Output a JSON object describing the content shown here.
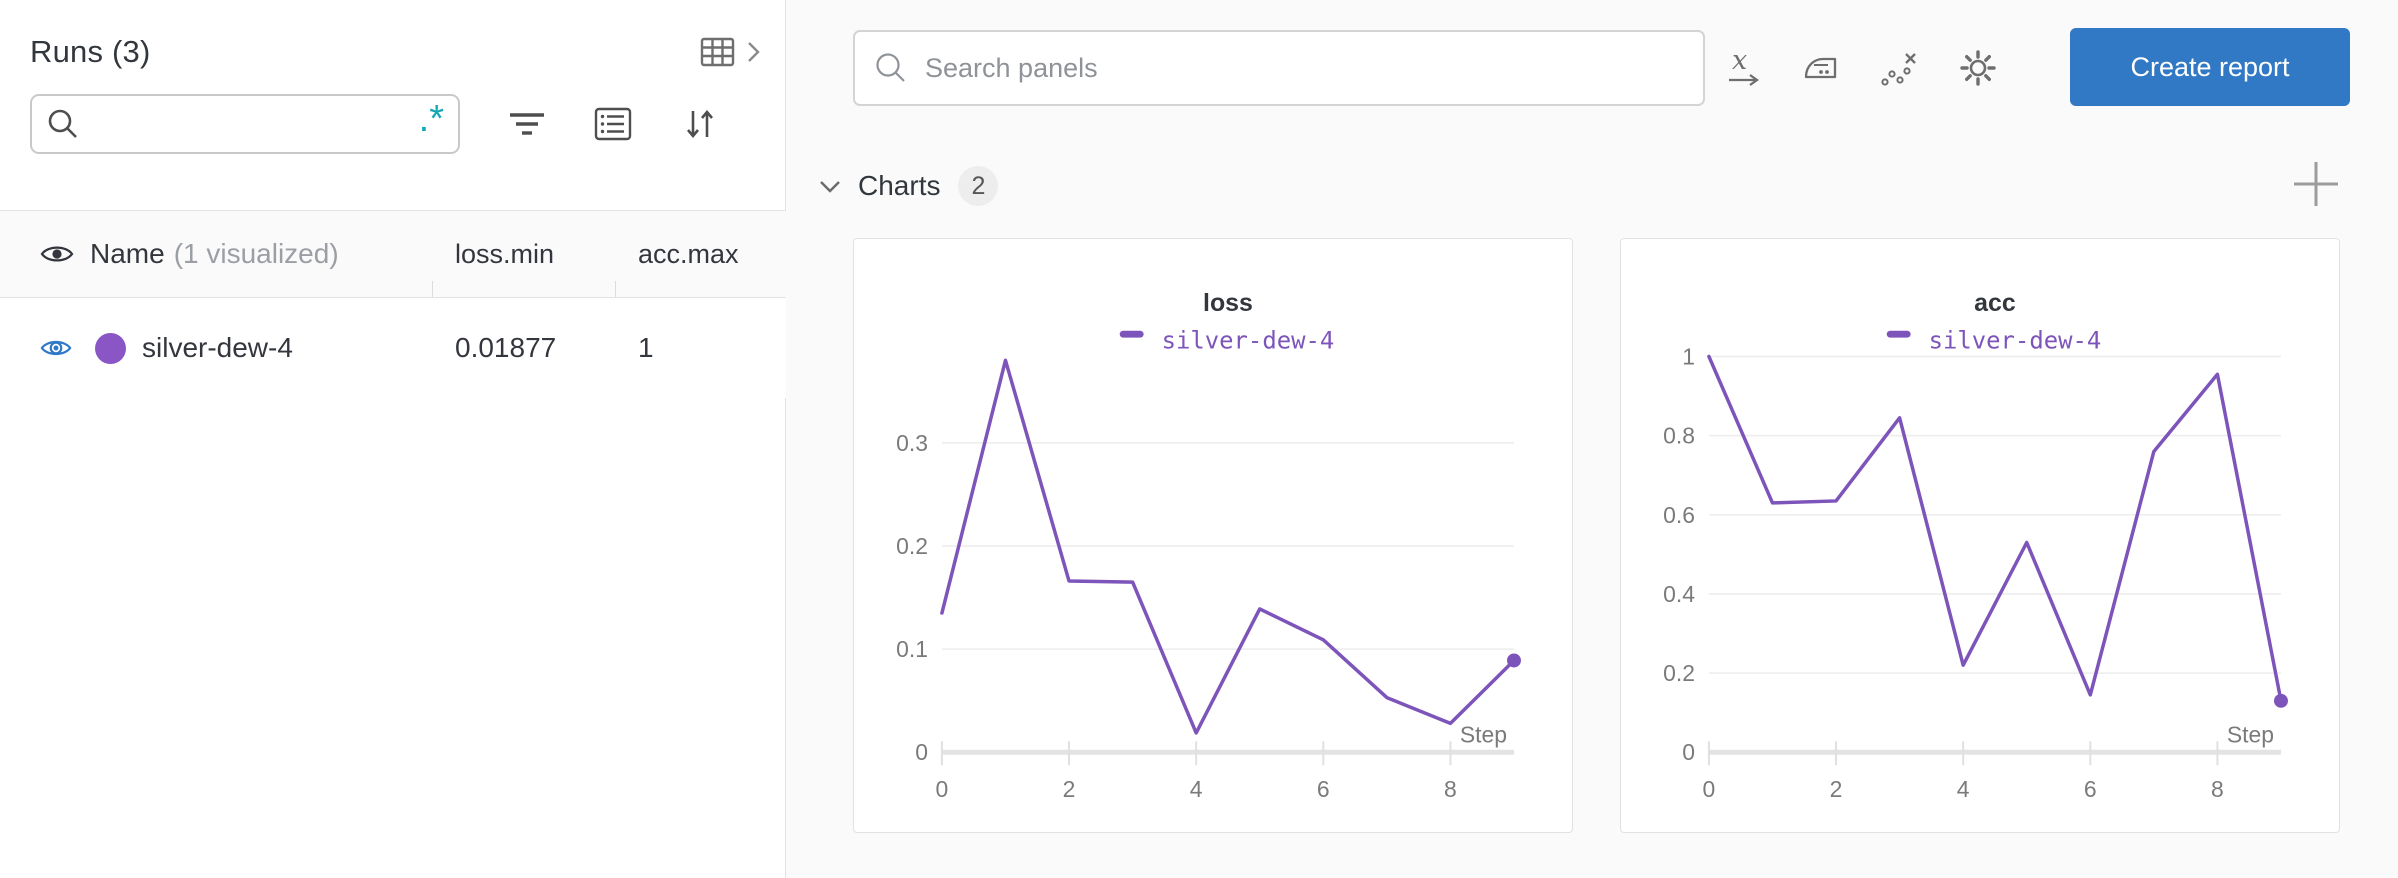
{
  "colors": {
    "accent_blue": "#3178c5",
    "eye_blue": "#2e78c7",
    "regex_teal": "#14a8b4",
    "run_purple": "#8a56c6",
    "series_purple": "#7d54ba",
    "main_background": "#fafafa",
    "panel_background": "#ffffff"
  },
  "sidebar": {
    "title": "Runs (3)",
    "search": {
      "value": "",
      "regex_label": ".*"
    },
    "toolbar_icons": [
      "table-view-icon",
      "chevron-right-icon",
      "filter-icon",
      "list-view-icon",
      "sort-icon"
    ],
    "table": {
      "name_header": "Name",
      "name_annotation": "(1 visualized)",
      "columns": [
        "loss.min",
        "acc.max"
      ],
      "rows": [
        {
          "name": "silver-dew-4",
          "loss_min": "0.01877",
          "acc_max": "1",
          "color": "#8a56c6",
          "visualized": true
        }
      ]
    }
  },
  "main": {
    "search_placeholder": "Search panels",
    "toolbar_icons": [
      "x-axis-icon",
      "smoothing-iron-icon",
      "outliers-icon",
      "settings-gear-icon"
    ],
    "create_report_label": "Create report",
    "section": {
      "label": "Charts",
      "count": "2"
    },
    "add_panel_icon": "plus-icon"
  },
  "chart_data": [
    {
      "type": "line",
      "title": "loss",
      "xlabel": "Step",
      "xlim": [
        0,
        9
      ],
      "xticks": [
        0,
        2,
        4,
        6,
        8
      ],
      "yticks": [
        0,
        0.1,
        0.2,
        0.3
      ],
      "ylim": [
        0,
        0.401
      ],
      "grid": true,
      "legend_position": "top",
      "end_marker": true,
      "series": [
        {
          "name": "silver-dew-4",
          "color": "#7d54ba",
          "x": [
            0,
            1,
            2,
            3,
            4,
            5,
            6,
            7,
            8,
            9
          ],
          "values": [
            0.135,
            0.38,
            0.166,
            0.165,
            0.01877,
            0.139,
            0.109,
            0.053,
            0.028,
            0.089
          ]
        }
      ]
    },
    {
      "type": "line",
      "title": "acc",
      "xlabel": "Step",
      "xlim": [
        0,
        9
      ],
      "xticks": [
        0,
        2,
        4,
        6,
        8
      ],
      "yticks": [
        0,
        0.2,
        0.4,
        0.6,
        0.8,
        1
      ],
      "ylim": [
        0,
        1.045
      ],
      "grid": true,
      "legend_position": "top",
      "end_marker": true,
      "series": [
        {
          "name": "silver-dew-4",
          "color": "#7d54ba",
          "x": [
            0,
            1,
            2,
            3,
            4,
            5,
            6,
            7,
            8,
            9
          ],
          "values": [
            1.0,
            0.63,
            0.635,
            0.845,
            0.22,
            0.53,
            0.145,
            0.76,
            0.955,
            0.13
          ]
        }
      ]
    }
  ]
}
